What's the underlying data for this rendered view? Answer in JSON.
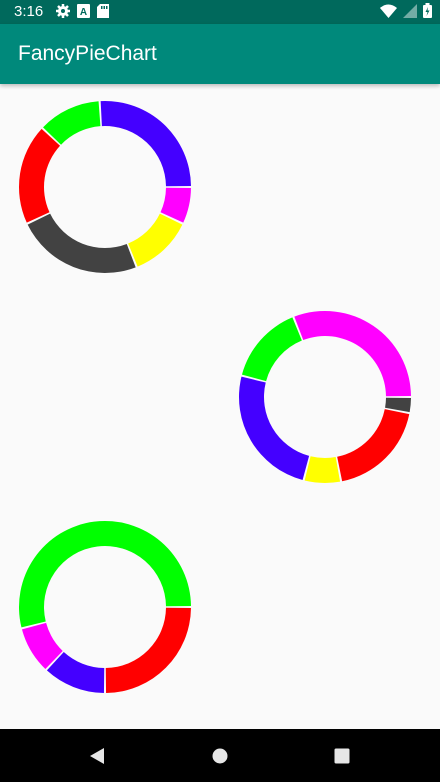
{
  "status_bar": {
    "time": "3:16",
    "icons": [
      "gear-icon",
      "a-icon",
      "sd-card-icon"
    ],
    "right_icons": [
      "wifi-icon",
      "signal-icon",
      "battery-icon"
    ]
  },
  "app_bar": {
    "title": "FancyPieChart"
  },
  "chart_data": [
    {
      "type": "pie",
      "style": "donut",
      "start_angle_deg": 0,
      "slices": [
        {
          "value": 7,
          "color": "#ff00ff"
        },
        {
          "value": 12,
          "color": "#ffff00"
        },
        {
          "value": 24,
          "color": "#424242"
        },
        {
          "value": 19,
          "color": "#ff0000"
        },
        {
          "value": 12,
          "color": "#00ff00"
        },
        {
          "value": 26,
          "color": "#4400ff"
        }
      ]
    },
    {
      "type": "pie",
      "style": "donut",
      "start_angle_deg": 0,
      "slices": [
        {
          "value": 3,
          "color": "#424242"
        },
        {
          "value": 19,
          "color": "#ff0000"
        },
        {
          "value": 7,
          "color": "#ffff00"
        },
        {
          "value": 25,
          "color": "#4400ff"
        },
        {
          "value": 15,
          "color": "#00ff00"
        },
        {
          "value": 31,
          "color": "#ff00ff"
        }
      ]
    },
    {
      "type": "pie",
      "style": "donut",
      "start_angle_deg": 0,
      "slices": [
        {
          "value": 25,
          "color": "#ff0000"
        },
        {
          "value": 12,
          "color": "#4400ff"
        },
        {
          "value": 9,
          "color": "#ff00ff"
        },
        {
          "value": 54,
          "color": "#00ff00"
        }
      ]
    }
  ],
  "nav_bar": {
    "buttons": [
      "back-icon",
      "home-icon",
      "recents-icon"
    ]
  }
}
